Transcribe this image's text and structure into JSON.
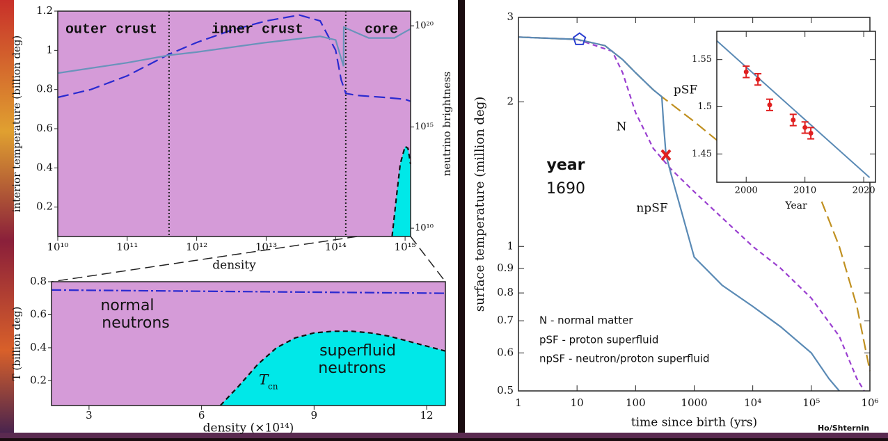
{
  "chart_data": [
    {
      "type": "line",
      "xlabel": "density",
      "ylabel": "interior temperature (billion deg)",
      "y2label": "neutrino brightness",
      "ylabel_color": "#2a2ad0",
      "y2label_color": "#6a93bb",
      "background": "#d59bd8",
      "xlog": true,
      "y2log": true,
      "xlim": [
        10000000000.0,
        1200000000000000.0
      ],
      "ylim": [
        0.05,
        1.2
      ],
      "y2lim": [
        3900000000.0,
        5.3e+20
      ],
      "xticks": [
        {
          "value": 10000000000.0,
          "label": "10¹⁰"
        },
        {
          "value": 100000000000.0,
          "label": "10¹¹"
        },
        {
          "value": 1000000000000.0,
          "label": "10¹²"
        },
        {
          "value": 10000000000000.0,
          "label": "10¹³"
        },
        {
          "value": 100000000000000.0,
          "label": "10¹⁴"
        },
        {
          "value": 1000000000000000.0,
          "label": "10¹⁵"
        }
      ],
      "yticks": [
        0.2,
        0.4,
        0.6,
        0.8,
        1,
        1.2
      ],
      "y2ticks": [
        {
          "value": 10000000000.0,
          "label": "10¹⁰"
        },
        {
          "value": 1000000000000000.0,
          "label": "10¹⁵"
        },
        {
          "value": 1e+20,
          "label": "10²⁰"
        }
      ],
      "annotations": [
        "outer crust",
        "inner crust",
        "core"
      ],
      "boundaries": [
        400000000000.0,
        140000000000000.0
      ],
      "series": [
        {
          "color": "#2a2ad0",
          "dash": "longdash",
          "x": [
            10000000000.0,
            30000000000.0,
            100000000000.0,
            400000000000.0,
            1000000000000.0,
            3000000000000.0,
            10000000000000.0,
            30000000000000.0,
            60000000000000.0,
            100000000000000.0,
            120000000000000.0,
            140000000000000.0,
            200000000000000.0,
            500000000000000.0,
            1000000000000000.0,
            1200000000000000.0
          ],
          "values": [
            0.76,
            0.8,
            0.87,
            0.98,
            1.04,
            1.1,
            1.15,
            1.18,
            1.15,
            1.0,
            0.85,
            0.78,
            0.77,
            0.76,
            0.75,
            0.74
          ]
        },
        {
          "color": "#6a93bb",
          "dash": "solid",
          "axis": "y2",
          "x": [
            10000000000.0,
            100000000000.0,
            400000000000.0,
            1000000000000.0,
            10000000000000.0,
            60000000000000.0,
            100000000000000.0,
            130000000000000.0,
            131000000000000.0,
            300000000000000.0,
            700000000000000.0,
            1000000000000000.0,
            1200000000000000.0
          ],
          "values": [
            4.6e+17,
            1.5e+18,
            3.5e+18,
            5e+18,
            1.5e+19,
            3e+19,
            2e+19,
            1e+18,
            8.5e+19,
            2.5e+19,
            2.5e+19,
            5e+19,
            7e+19
          ]
        },
        {
          "color": "#111111",
          "dash": "dashed",
          "fill": "#00e8e8",
          "x": [
            650000000000000.0,
            750000000000000.0,
            850000000000000.0,
            1000000000000000.0,
            1100000000000000.0,
            1200000000000000.0
          ],
          "values": [
            0.05,
            0.25,
            0.42,
            0.51,
            0.5,
            0.42
          ]
        }
      ]
    },
    {
      "type": "line",
      "xlabel": "density (×10¹⁴)",
      "ylabel": "T (billion deg)",
      "ylabel_color": "#2a2ad0",
      "background": "#d59bd8",
      "xlim": [
        2,
        12.5
      ],
      "ylim": [
        0.05,
        0.8
      ],
      "xticks": [
        3,
        6,
        9,
        12
      ],
      "yticks": [
        0.2,
        0.4,
        0.6,
        0.8
      ],
      "annotations": [
        "normal",
        "neutrons",
        "superfluid",
        "neutrons"
      ],
      "curve_label": {
        "text": "T",
        "subscript": "cn"
      },
      "series": [
        {
          "color": "#2a2ad0",
          "dash": "dashdot",
          "x": [
            2,
            12.5
          ],
          "values": [
            0.75,
            0.73
          ]
        },
        {
          "color": "#111111",
          "dash": "dashed",
          "fill": "#00e8e8",
          "x": [
            6.5,
            7,
            7.5,
            8,
            8.5,
            9,
            9.5,
            10,
            10.5,
            11,
            11.5,
            12,
            12.5
          ],
          "values": [
            0.05,
            0.17,
            0.3,
            0.4,
            0.46,
            0.49,
            0.5,
            0.5,
            0.49,
            0.47,
            0.44,
            0.41,
            0.38
          ]
        }
      ]
    },
    {
      "type": "line",
      "xlabel": "time since birth (yrs)",
      "ylabel": "surface temperature (million deg)",
      "background": "#ffffff",
      "xlog": true,
      "ylog": true,
      "xlim": [
        1,
        1000000.0
      ],
      "ylim": [
        0.5,
        3
      ],
      "xticks": [
        1,
        10,
        100,
        1000,
        {
          "value": 10000.0,
          "label": "10⁴"
        },
        {
          "value": 100000.0,
          "label": "10⁵"
        },
        {
          "value": 1000000.0,
          "label": "10⁶"
        }
      ],
      "yticks": [
        0.5,
        0.6,
        0.7,
        0.8,
        0.9,
        1,
        2,
        3
      ],
      "series": [
        {
          "name": "N",
          "legend": "N - normal matter",
          "color": "#9a3fd0",
          "dash": "dashed",
          "x": [
            1,
            10,
            40,
            60,
            100,
            200,
            400,
            1000,
            10000,
            30000,
            100000,
            300000,
            600000,
            800000
          ],
          "values": [
            2.73,
            2.7,
            2.55,
            2.3,
            1.9,
            1.6,
            1.45,
            1.3,
            1.0,
            0.9,
            0.78,
            0.65,
            0.53,
            0.5
          ]
        },
        {
          "name": "pSF",
          "legend": "pSF - proton superfluid",
          "color": "#c09020",
          "dash": "longdash",
          "x": [
            1,
            10,
            30,
            60,
            100,
            200,
            280,
            1000,
            3000,
            10000,
            150000,
            300000,
            600000,
            1000000
          ],
          "values": [
            2.73,
            2.7,
            2.62,
            2.45,
            2.3,
            2.12,
            2.05,
            1.82,
            1.63,
            null,
            1.24,
            1.0,
            0.75,
            0.55
          ]
        },
        {
          "name": "npSF",
          "legend": "npSF - neutron/proton superfluid",
          "color": "#5a8ab5",
          "dash": "solid",
          "x": [
            1,
            10,
            30,
            60,
            100,
            200,
            280,
            300,
            330,
            400,
            1000,
            3000,
            10000,
            30000,
            100000,
            200000,
            300000
          ],
          "values": [
            2.73,
            2.7,
            2.62,
            2.45,
            2.3,
            2.12,
            2.05,
            1.8,
            1.55,
            1.42,
            0.95,
            0.83,
            0.75,
            0.68,
            0.6,
            0.53,
            0.5
          ]
        }
      ],
      "points": [
        {
          "x": 11,
          "value": 2.7,
          "color": "#2b3fd0",
          "shape": "pentagon"
        },
        {
          "x": 330,
          "value": 1.55,
          "color": "#e02020",
          "shape": "cross"
        }
      ],
      "year_label": "year",
      "year": 1690,
      "credit": "Ho/Shternin"
    },
    {
      "type": "scatter",
      "xlabel": "Year",
      "background": "#ffffff",
      "color": "#e02020",
      "xlim": [
        1995,
        2022
      ],
      "ylim": [
        1.42,
        1.58
      ],
      "xticks": [
        2000,
        2010,
        2020
      ],
      "yticks": [
        1.45,
        1.5,
        1.55
      ],
      "x": [
        2000,
        2002,
        2004,
        2008,
        2010,
        2011
      ],
      "values": [
        1.537,
        1.529,
        1.502,
        1.486,
        1.478,
        1.472
      ],
      "errors": [
        0.006,
        0.006,
        0.006,
        0.006,
        0.006,
        0.006
      ],
      "fit": {
        "color": "#5a8ab5",
        "x": [
          1995,
          2021
        ],
        "values": [
          1.57,
          1.425
        ]
      }
    }
  ]
}
